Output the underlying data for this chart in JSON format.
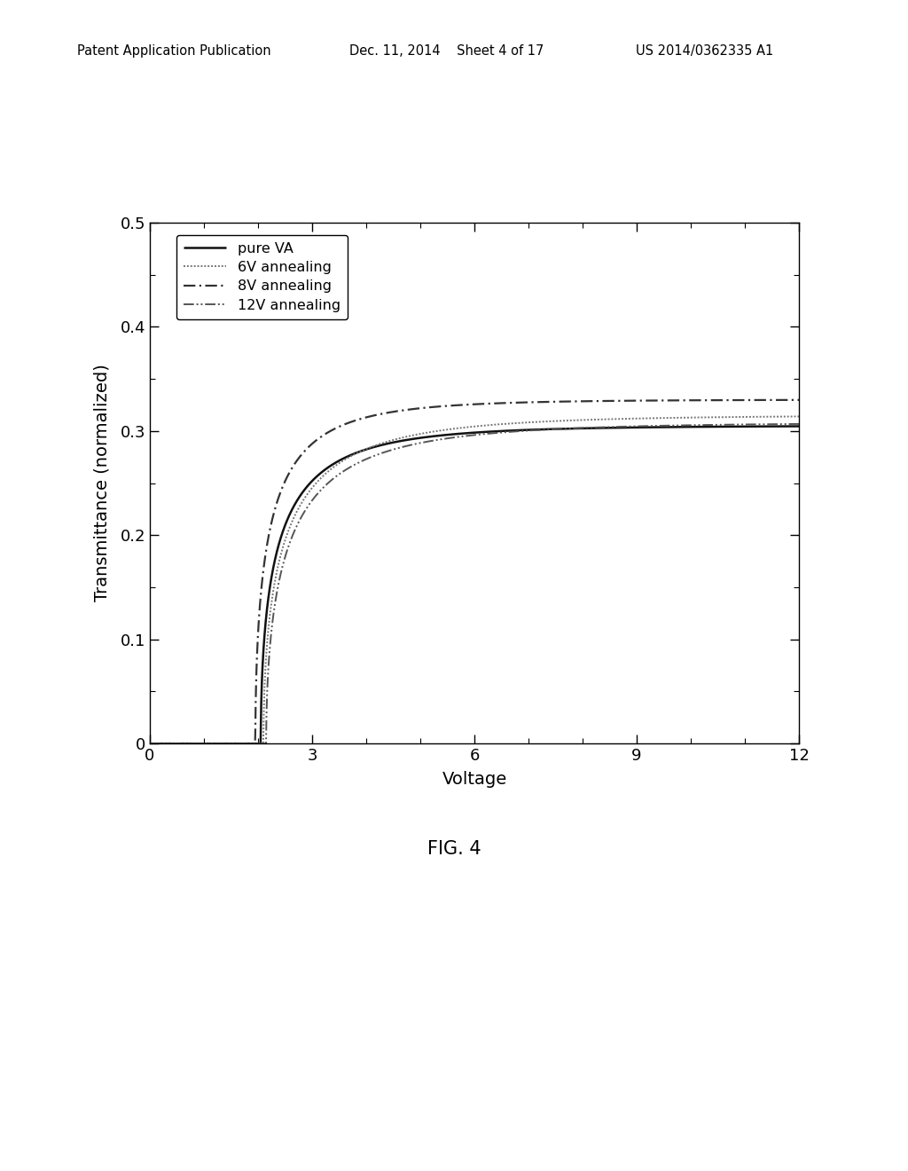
{
  "title_line1": "Patent Application Publication",
  "title_line2": "Dec. 11, 2014  Sheet 4 of 17",
  "title_line3": "US 2014/0362335 A1",
  "fig_caption": "FIG. 4",
  "xlabel": "Voltage",
  "ylabel": "Transmittance (normalized)",
  "xlim": [
    0,
    12
  ],
  "ylim": [
    0,
    0.5
  ],
  "xticks": [
    0,
    3,
    6,
    9,
    12
  ],
  "yticks": [
    0,
    0.1,
    0.2,
    0.3,
    0.4,
    0.5
  ],
  "series": [
    {
      "label": "pure VA",
      "color": "#111111",
      "linestyle": "solid",
      "linewidth": 1.8,
      "v0": 2.05,
      "sat": 0.305,
      "k": 1.8
    },
    {
      "label": "6V annealing",
      "color": "#777777",
      "linestyle": "dotted",
      "linewidth": 1.4,
      "v0": 2.1,
      "sat": 0.315,
      "k": 1.6
    },
    {
      "label": "8V annealing",
      "color": "#333333",
      "linestyle": "dashdot",
      "linewidth": 1.6,
      "v0": 1.95,
      "sat": 0.33,
      "k": 2.0
    },
    {
      "label": "12V annealing",
      "color": "#555555",
      "linestyle": "dashdotdotted",
      "linewidth": 1.4,
      "v0": 2.15,
      "sat": 0.308,
      "k": 1.55
    }
  ]
}
